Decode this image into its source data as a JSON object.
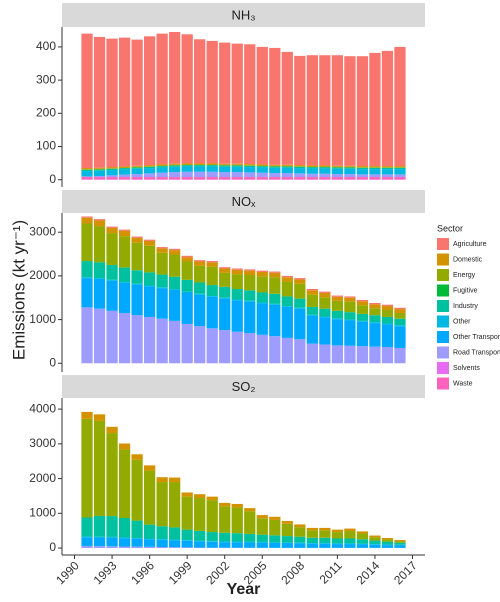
{
  "chart_data": [
    {
      "type": "bar",
      "stacked": true,
      "title": "NH₃",
      "x": [
        1991,
        1992,
        1993,
        1994,
        1995,
        1996,
        1997,
        1998,
        1999,
        2000,
        2001,
        2002,
        2003,
        2004,
        2005,
        2006,
        2007,
        2008,
        2009,
        2010,
        2011,
        2012,
        2013,
        2014,
        2015,
        2016
      ],
      "xlim": [
        1989,
        2018
      ],
      "ylim": [
        -22,
        460
      ],
      "yticks": [
        0,
        100,
        200,
        300,
        400
      ],
      "series": [
        {
          "name": "Agriculture",
          "color": "#F8766D",
          "values": [
            405,
            394,
            387,
            388,
            380,
            388,
            394,
            397,
            389,
            374,
            369,
            365,
            362,
            361,
            354,
            352,
            340,
            329,
            332,
            332,
            333,
            330,
            331,
            341,
            347,
            359
          ]
        },
        {
          "name": "Domestic",
          "color": "#D39200",
          "values": [
            3,
            3,
            3,
            3,
            3,
            3,
            3,
            3,
            3,
            3,
            3,
            3,
            3,
            3,
            3,
            3,
            3,
            3,
            3,
            3,
            3,
            3,
            3,
            3,
            3,
            3
          ]
        },
        {
          "name": "Energy",
          "color": "#93AA00",
          "values": [
            2,
            2,
            2,
            2,
            2,
            2,
            2,
            2,
            2,
            2,
            2,
            2,
            2,
            2,
            2,
            2,
            2,
            2,
            2,
            2,
            2,
            2,
            2,
            2,
            2,
            2
          ]
        },
        {
          "name": "Fugitive",
          "color": "#00BA38",
          "values": [
            0,
            0,
            0,
            0,
            0,
            0,
            0,
            0,
            0,
            0,
            0,
            0,
            0,
            0,
            0,
            0,
            0,
            0,
            0,
            0,
            0,
            0,
            0,
            0,
            0,
            0
          ]
        },
        {
          "name": "Industry",
          "color": "#00C19F",
          "values": [
            4,
            4,
            4,
            4,
            4,
            4,
            4,
            4,
            4,
            4,
            4,
            4,
            4,
            4,
            4,
            4,
            4,
            4,
            4,
            4,
            4,
            4,
            4,
            4,
            4,
            4
          ]
        },
        {
          "name": "Other",
          "color": "#00B9E3",
          "values": [
            16,
            16,
            16,
            16,
            16,
            16,
            16,
            16,
            16,
            16,
            16,
            16,
            16,
            16,
            16,
            16,
            16,
            16,
            16,
            16,
            16,
            16,
            16,
            16,
            16,
            16
          ]
        },
        {
          "name": "Other Transport",
          "color": "#00A9FF",
          "values": [
            0,
            0,
            0,
            0,
            0,
            0,
            0,
            0,
            0,
            0,
            0,
            0,
            0,
            0,
            0,
            0,
            0,
            0,
            0,
            0,
            0,
            0,
            0,
            0,
            0,
            0
          ]
        },
        {
          "name": "Road Transport",
          "color": "#9F9CFF",
          "values": [
            2,
            3,
            5,
            7,
            9,
            11,
            13,
            15,
            16,
            16,
            16,
            15,
            15,
            14,
            13,
            12,
            12,
            11,
            10,
            10,
            9,
            9,
            8,
            8,
            8,
            8
          ]
        },
        {
          "name": "Solvents",
          "color": "#E76BF3",
          "values": [
            0,
            0,
            0,
            0,
            0,
            0,
            0,
            0,
            0,
            0,
            0,
            0,
            0,
            0,
            0,
            0,
            0,
            0,
            0,
            0,
            0,
            0,
            0,
            0,
            0,
            0
          ]
        },
        {
          "name": "Waste",
          "color": "#FF62BC",
          "values": [
            8,
            8,
            8,
            8,
            8,
            8,
            8,
            8,
            8,
            8,
            8,
            8,
            8,
            8,
            8,
            8,
            8,
            8,
            8,
            8,
            8,
            8,
            8,
            8,
            8,
            8
          ]
        }
      ]
    },
    {
      "type": "bar",
      "stacked": true,
      "title": "NOₓ",
      "ylabel": "Emissions (kt yr⁻¹)",
      "legend_title": "Sector",
      "legend": "right",
      "x": [
        1991,
        1992,
        1993,
        1994,
        1995,
        1996,
        1997,
        1998,
        1999,
        2000,
        2001,
        2002,
        2003,
        2004,
        2005,
        2006,
        2007,
        2008,
        2009,
        2010,
        2011,
        2012,
        2013,
        2014,
        2015,
        2016
      ],
      "xlim": [
        1989,
        2018
      ],
      "ylim": [
        -200,
        3440
      ],
      "yticks": [
        0,
        1000,
        2000,
        3000
      ],
      "series": [
        {
          "name": "Agriculture",
          "color": "#F8766D",
          "values": [
            30,
            30,
            30,
            30,
            30,
            30,
            30,
            30,
            30,
            30,
            30,
            30,
            30,
            30,
            30,
            30,
            30,
            30,
            30,
            30,
            30,
            30,
            30,
            30,
            30,
            30
          ]
        },
        {
          "name": "Domestic",
          "color": "#D39200",
          "values": [
            130,
            130,
            120,
            120,
            110,
            110,
            100,
            100,
            100,
            100,
            100,
            100,
            100,
            100,
            100,
            100,
            100,
            100,
            100,
            100,
            90,
            90,
            90,
            90,
            90,
            90
          ]
        },
        {
          "name": "Energy",
          "color": "#93AA00",
          "values": [
            860,
            830,
            730,
            720,
            630,
            610,
            500,
            510,
            420,
            380,
            420,
            320,
            340,
            350,
            370,
            380,
            340,
            340,
            280,
            260,
            230,
            240,
            200,
            160,
            160,
            130
          ]
        },
        {
          "name": "Fugitive",
          "color": "#00BA38",
          "values": [
            0,
            0,
            0,
            0,
            0,
            0,
            0,
            0,
            0,
            0,
            0,
            0,
            0,
            0,
            0,
            0,
            0,
            0,
            0,
            0,
            0,
            0,
            0,
            0,
            0,
            0
          ]
        },
        {
          "name": "Industry",
          "color": "#00C19F",
          "values": [
            370,
            360,
            340,
            330,
            310,
            300,
            290,
            280,
            270,
            260,
            250,
            250,
            240,
            240,
            230,
            230,
            220,
            210,
            180,
            180,
            170,
            170,
            160,
            160,
            150,
            150
          ]
        },
        {
          "name": "Other",
          "color": "#00B9E3",
          "values": [
            20,
            20,
            20,
            20,
            20,
            20,
            20,
            20,
            20,
            20,
            20,
            20,
            20,
            20,
            20,
            20,
            20,
            20,
            20,
            20,
            20,
            20,
            20,
            20,
            20,
            20
          ]
        },
        {
          "name": "Other Transport",
          "color": "#00A9FF",
          "values": [
            670,
            680,
            690,
            690,
            700,
            700,
            700,
            710,
            720,
            720,
            720,
            720,
            720,
            720,
            720,
            720,
            710,
            700,
            640,
            620,
            600,
            580,
            560,
            540,
            520,
            500
          ]
        },
        {
          "name": "Road Transport",
          "color": "#9F9CFF",
          "values": [
            1280,
            1250,
            1200,
            1150,
            1100,
            1060,
            1020,
            970,
            900,
            850,
            800,
            760,
            720,
            690,
            650,
            620,
            580,
            550,
            450,
            430,
            410,
            400,
            390,
            380,
            370,
            350
          ]
        },
        {
          "name": "Solvents",
          "color": "#E76BF3",
          "values": [
            0,
            0,
            0,
            0,
            0,
            0,
            0,
            0,
            0,
            0,
            0,
            0,
            0,
            0,
            0,
            0,
            0,
            0,
            0,
            0,
            0,
            0,
            0,
            0,
            0,
            0
          ]
        },
        {
          "name": "Waste",
          "color": "#FF62BC",
          "values": [
            0,
            0,
            0,
            0,
            0,
            0,
            0,
            0,
            0,
            0,
            0,
            0,
            0,
            0,
            0,
            0,
            0,
            0,
            0,
            0,
            0,
            0,
            0,
            0,
            0,
            0
          ]
        }
      ]
    },
    {
      "type": "bar",
      "stacked": true,
      "title": "SO₂",
      "xlabel": "Year",
      "x": [
        1991,
        1992,
        1993,
        1994,
        1995,
        1996,
        1997,
        1998,
        1999,
        2000,
        2001,
        2002,
        2003,
        2004,
        2005,
        2006,
        2007,
        2008,
        2009,
        2010,
        2011,
        2012,
        2013,
        2014,
        2015,
        2016
      ],
      "xlim": [
        1989,
        2018
      ],
      "xticks": [
        1990,
        1993,
        1996,
        1999,
        2002,
        2005,
        2008,
        2011,
        2014,
        2017
      ],
      "ylim": [
        -200,
        4320
      ],
      "yticks": [
        0,
        1000,
        2000,
        3000,
        4000
      ],
      "series": [
        {
          "name": "Agriculture",
          "color": "#F8766D",
          "values": [
            0,
            0,
            0,
            0,
            0,
            0,
            0,
            0,
            0,
            0,
            0,
            0,
            0,
            0,
            0,
            0,
            0,
            0,
            0,
            0,
            0,
            0,
            0,
            0,
            0,
            0
          ]
        },
        {
          "name": "Domestic",
          "color": "#D39200",
          "values": [
            200,
            190,
            180,
            170,
            160,
            150,
            140,
            130,
            120,
            110,
            100,
            100,
            100,
            90,
            90,
            90,
            80,
            80,
            70,
            70,
            70,
            70,
            60,
            50,
            40,
            30
          ]
        },
        {
          "name": "Energy",
          "color": "#93AA00",
          "values": [
            2840,
            2735,
            2390,
            1975,
            1750,
            1555,
            1270,
            1305,
            950,
            945,
            920,
            760,
            742,
            652,
            474,
            444,
            355,
            275,
            215,
            215,
            185,
            215,
            165,
            95,
            65,
            45
          ]
        },
        {
          "name": "Fugitive",
          "color": "#00BA38",
          "values": [
            0,
            0,
            0,
            0,
            0,
            0,
            0,
            0,
            0,
            0,
            0,
            0,
            0,
            0,
            0,
            0,
            0,
            0,
            0,
            0,
            0,
            0,
            0,
            0,
            0,
            0
          ]
        },
        {
          "name": "Industry",
          "color": "#00C19F",
          "values": [
            550,
            600,
            600,
            560,
            500,
            400,
            370,
            350,
            300,
            280,
            260,
            250,
            240,
            230,
            210,
            200,
            180,
            170,
            150,
            150,
            140,
            140,
            130,
            100,
            80,
            60
          ]
        },
        {
          "name": "Other",
          "color": "#00B9E3",
          "values": [
            20,
            20,
            20,
            20,
            20,
            20,
            20,
            20,
            20,
            20,
            20,
            20,
            20,
            20,
            20,
            20,
            20,
            20,
            20,
            20,
            20,
            20,
            20,
            20,
            20,
            20
          ]
        },
        {
          "name": "Other Transport",
          "color": "#00A9FF",
          "values": [
            250,
            250,
            250,
            240,
            230,
            220,
            210,
            200,
            190,
            180,
            170,
            160,
            160,
            150,
            150,
            140,
            140,
            130,
            120,
            120,
            110,
            110,
            100,
            90,
            80,
            70
          ]
        },
        {
          "name": "Road Transport",
          "color": "#9F9CFF",
          "values": [
            60,
            55,
            50,
            45,
            40,
            35,
            30,
            25,
            20,
            15,
            10,
            10,
            8,
            8,
            6,
            6,
            5,
            5,
            5,
            5,
            5,
            5,
            5,
            5,
            5,
            5
          ]
        },
        {
          "name": "Solvents",
          "color": "#E76BF3",
          "values": [
            0,
            0,
            0,
            0,
            0,
            0,
            0,
            0,
            0,
            0,
            0,
            0,
            0,
            0,
            0,
            0,
            0,
            0,
            0,
            0,
            0,
            0,
            0,
            0,
            0,
            0
          ]
        },
        {
          "name": "Waste",
          "color": "#FF62BC",
          "values": [
            0,
            0,
            0,
            0,
            0,
            0,
            0,
            0,
            0,
            0,
            0,
            0,
            0,
            0,
            0,
            0,
            0,
            0,
            0,
            0,
            0,
            0,
            0,
            0,
            0,
            0
          ]
        }
      ]
    }
  ]
}
